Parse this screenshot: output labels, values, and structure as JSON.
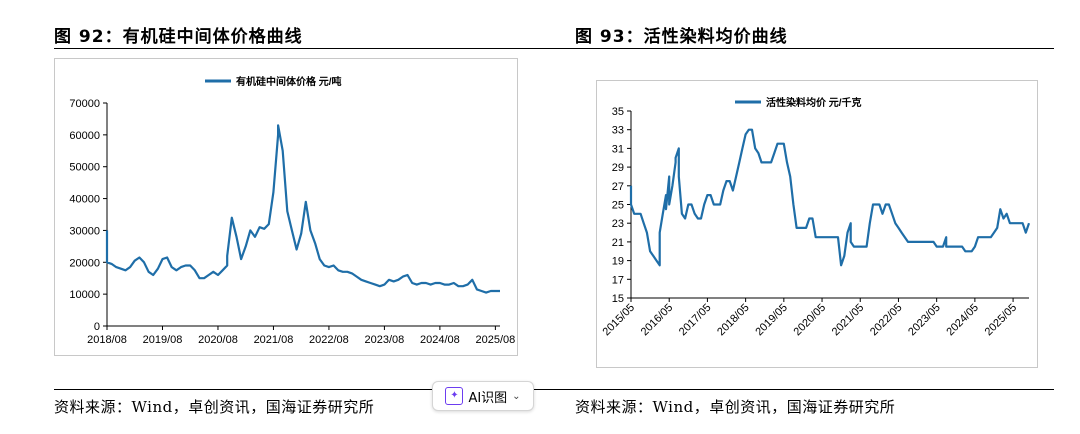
{
  "figures": {
    "left_title": "图 92：有机硅中间体价格曲线",
    "right_title": "图 93：活性染料均价曲线"
  },
  "footer": {
    "left_source": "资料来源：Wind，卓创资讯，国海证券研究所",
    "right_source": "资料来源：Wind，卓创资讯，国海证券研究所",
    "ai_button_label": "AI识图",
    "ai_button_icon": "sparkle-icon",
    "ai_button_chevron": "chevron-down-icon"
  },
  "chart_data": [
    {
      "type": "line",
      "legend": "有机硅中间体价格  元/吨",
      "color": "#1f6ea8",
      "ylim": [
        0,
        70000
      ],
      "yticks": [
        0,
        10000,
        20000,
        30000,
        40000,
        50000,
        60000,
        70000
      ],
      "xlim": [
        "2018/08",
        "2025/09"
      ],
      "xticks": [
        "2018/08",
        "2019/08",
        "2020/08",
        "2021/08",
        "2022/08",
        "2023/08",
        "2024/08",
        "2025/08"
      ],
      "series": [
        {
          "x": "2018/08",
          "y": 30000
        },
        {
          "x": "2018/08",
          "y": 20000
        },
        {
          "x": "2018/09",
          "y": 19500
        },
        {
          "x": "2018/10",
          "y": 18500
        },
        {
          "x": "2018/11",
          "y": 18000
        },
        {
          "x": "2018/12",
          "y": 17500
        },
        {
          "x": "2019/01",
          "y": 18500
        },
        {
          "x": "2019/02",
          "y": 20500
        },
        {
          "x": "2019/03",
          "y": 21500
        },
        {
          "x": "2019/04",
          "y": 20000
        },
        {
          "x": "2019/05",
          "y": 17000
        },
        {
          "x": "2019/06",
          "y": 16000
        },
        {
          "x": "2019/07",
          "y": 18000
        },
        {
          "x": "2019/08",
          "y": 21000
        },
        {
          "x": "2019/09",
          "y": 21500
        },
        {
          "x": "2019/10",
          "y": 18500
        },
        {
          "x": "2019/11",
          "y": 17500
        },
        {
          "x": "2019/12",
          "y": 18500
        },
        {
          "x": "2020/01",
          "y": 19000
        },
        {
          "x": "2020/02",
          "y": 19000
        },
        {
          "x": "2020/03",
          "y": 17500
        },
        {
          "x": "2020/04",
          "y": 15000
        },
        {
          "x": "2020/05",
          "y": 15000
        },
        {
          "x": "2020/06",
          "y": 16000
        },
        {
          "x": "2020/07",
          "y": 17000
        },
        {
          "x": "2020/08",
          "y": 16000
        },
        {
          "x": "2020/09",
          "y": 17500
        },
        {
          "x": "2020/10",
          "y": 19000
        },
        {
          "x": "2020/10",
          "y": 22000
        },
        {
          "x": "2020/11",
          "y": 34000
        },
        {
          "x": "2020/12",
          "y": 28000
        },
        {
          "x": "2021/01",
          "y": 21000
        },
        {
          "x": "2021/02",
          "y": 25000
        },
        {
          "x": "2021/03",
          "y": 30000
        },
        {
          "x": "2021/04",
          "y": 28000
        },
        {
          "x": "2021/05",
          "y": 31000
        },
        {
          "x": "2021/06",
          "y": 30500
        },
        {
          "x": "2021/07",
          "y": 32000
        },
        {
          "x": "2021/08",
          "y": 42000
        },
        {
          "x": "2021/09",
          "y": 60000
        },
        {
          "x": "2021/09",
          "y": 63000
        },
        {
          "x": "2021/10",
          "y": 55000
        },
        {
          "x": "2021/11",
          "y": 36000
        },
        {
          "x": "2021/12",
          "y": 30000
        },
        {
          "x": "2022/01",
          "y": 24000
        },
        {
          "x": "2022/02",
          "y": 29000
        },
        {
          "x": "2022/03",
          "y": 39000
        },
        {
          "x": "2022/04",
          "y": 30000
        },
        {
          "x": "2022/05",
          "y": 26000
        },
        {
          "x": "2022/06",
          "y": 21000
        },
        {
          "x": "2022/07",
          "y": 19000
        },
        {
          "x": "2022/08",
          "y": 18500
        },
        {
          "x": "2022/09",
          "y": 19000
        },
        {
          "x": "2022/10",
          "y": 17500
        },
        {
          "x": "2022/11",
          "y": 17000
        },
        {
          "x": "2022/12",
          "y": 17000
        },
        {
          "x": "2023/01",
          "y": 16500
        },
        {
          "x": "2023/02",
          "y": 15500
        },
        {
          "x": "2023/03",
          "y": 14500
        },
        {
          "x": "2023/04",
          "y": 14000
        },
        {
          "x": "2023/05",
          "y": 13500
        },
        {
          "x": "2023/06",
          "y": 13000
        },
        {
          "x": "2023/07",
          "y": 12500
        },
        {
          "x": "2023/08",
          "y": 13000
        },
        {
          "x": "2023/09",
          "y": 14500
        },
        {
          "x": "2023/10",
          "y": 14000
        },
        {
          "x": "2023/11",
          "y": 14500
        },
        {
          "x": "2023/12",
          "y": 15500
        },
        {
          "x": "2024/01",
          "y": 16000
        },
        {
          "x": "2024/02",
          "y": 13500
        },
        {
          "x": "2024/03",
          "y": 13000
        },
        {
          "x": "2024/04",
          "y": 13500
        },
        {
          "x": "2024/05",
          "y": 13500
        },
        {
          "x": "2024/06",
          "y": 13000
        },
        {
          "x": "2024/07",
          "y": 13500
        },
        {
          "x": "2024/08",
          "y": 13500
        },
        {
          "x": "2024/09",
          "y": 13000
        },
        {
          "x": "2024/10",
          "y": 13000
        },
        {
          "x": "2024/11",
          "y": 13500
        },
        {
          "x": "2024/12",
          "y": 12500
        },
        {
          "x": "2025/01",
          "y": 12500
        },
        {
          "x": "2025/02",
          "y": 13000
        },
        {
          "x": "2025/03",
          "y": 14500
        },
        {
          "x": "2025/04",
          "y": 11500
        },
        {
          "x": "2025/05",
          "y": 11000
        },
        {
          "x": "2025/06",
          "y": 10500
        },
        {
          "x": "2025/07",
          "y": 11000
        },
        {
          "x": "2025/08",
          "y": 11000
        },
        {
          "x": "2025/09",
          "y": 11000
        }
      ]
    },
    {
      "type": "line",
      "legend": "活性染料均价  元/千克",
      "color": "#1f6ea8",
      "ylim": [
        15,
        35
      ],
      "yticks": [
        15,
        17,
        19,
        21,
        23,
        25,
        27,
        29,
        31,
        33,
        35
      ],
      "xlim": [
        "2015/05",
        "2025/10"
      ],
      "xticks": [
        "2015/05",
        "2016/05",
        "2017/05",
        "2018/05",
        "2019/05",
        "2020/05",
        "2021/05",
        "2022/05",
        "2023/05",
        "2024/05",
        "2025/05"
      ],
      "series": [
        {
          "x": "2015/05",
          "y": 27
        },
        {
          "x": "2015/05",
          "y": 25
        },
        {
          "x": "2015/06",
          "y": 24
        },
        {
          "x": "2015/07",
          "y": 24
        },
        {
          "x": "2015/08",
          "y": 24
        },
        {
          "x": "2015/09",
          "y": 23
        },
        {
          "x": "2015/10",
          "y": 22
        },
        {
          "x": "2015/11",
          "y": 20
        },
        {
          "x": "2015/12",
          "y": 19.5
        },
        {
          "x": "2016/01",
          "y": 19
        },
        {
          "x": "2016/02",
          "y": 18.5
        },
        {
          "x": "2016/02",
          "y": 22
        },
        {
          "x": "2016/03",
          "y": 24
        },
        {
          "x": "2016/04",
          "y": 26
        },
        {
          "x": "2016/04",
          "y": 24.5
        },
        {
          "x": "2016/05",
          "y": 28
        },
        {
          "x": "2016/05",
          "y": 25
        },
        {
          "x": "2016/06",
          "y": 27
        },
        {
          "x": "2016/07",
          "y": 29.5
        },
        {
          "x": "2016/07",
          "y": 30
        },
        {
          "x": "2016/08",
          "y": 31
        },
        {
          "x": "2016/08",
          "y": 28
        },
        {
          "x": "2016/09",
          "y": 24
        },
        {
          "x": "2016/10",
          "y": 23.5
        },
        {
          "x": "2016/11",
          "y": 25
        },
        {
          "x": "2016/12",
          "y": 25
        },
        {
          "x": "2017/01",
          "y": 24
        },
        {
          "x": "2017/02",
          "y": 23.5
        },
        {
          "x": "2017/03",
          "y": 23.5
        },
        {
          "x": "2017/04",
          "y": 25
        },
        {
          "x": "2017/05",
          "y": 26
        },
        {
          "x": "2017/06",
          "y": 26
        },
        {
          "x": "2017/07",
          "y": 25
        },
        {
          "x": "2017/08",
          "y": 25
        },
        {
          "x": "2017/09",
          "y": 25
        },
        {
          "x": "2017/10",
          "y": 26.5
        },
        {
          "x": "2017/11",
          "y": 27.5
        },
        {
          "x": "2017/12",
          "y": 27.5
        },
        {
          "x": "2018/01",
          "y": 26.5
        },
        {
          "x": "2018/02",
          "y": 28
        },
        {
          "x": "2018/03",
          "y": 29.5
        },
        {
          "x": "2018/04",
          "y": 31
        },
        {
          "x": "2018/05",
          "y": 32.5
        },
        {
          "x": "2018/06",
          "y": 33
        },
        {
          "x": "2018/07",
          "y": 33
        },
        {
          "x": "2018/08",
          "y": 31
        },
        {
          "x": "2018/09",
          "y": 30.5
        },
        {
          "x": "2018/10",
          "y": 29.5
        },
        {
          "x": "2018/11",
          "y": 29.5
        },
        {
          "x": "2018/12",
          "y": 29.5
        },
        {
          "x": "2019/01",
          "y": 29.5
        },
        {
          "x": "2019/02",
          "y": 30.5
        },
        {
          "x": "2019/03",
          "y": 31.5
        },
        {
          "x": "2019/04",
          "y": 31.5
        },
        {
          "x": "2019/05",
          "y": 31.5
        },
        {
          "x": "2019/06",
          "y": 29.5
        },
        {
          "x": "2019/07",
          "y": 28
        },
        {
          "x": "2019/08",
          "y": 25
        },
        {
          "x": "2019/09",
          "y": 22.5
        },
        {
          "x": "2019/10",
          "y": 22.5
        },
        {
          "x": "2019/11",
          "y": 22.5
        },
        {
          "x": "2019/12",
          "y": 22.5
        },
        {
          "x": "2020/01",
          "y": 23.5
        },
        {
          "x": "2020/02",
          "y": 23.5
        },
        {
          "x": "2020/03",
          "y": 21.5
        },
        {
          "x": "2020/04",
          "y": 21.5
        },
        {
          "x": "2020/05",
          "y": 21.5
        },
        {
          "x": "2020/06",
          "y": 21.5
        },
        {
          "x": "2020/07",
          "y": 21.5
        },
        {
          "x": "2020/08",
          "y": 21.5
        },
        {
          "x": "2020/09",
          "y": 21.5
        },
        {
          "x": "2020/10",
          "y": 21.5
        },
        {
          "x": "2020/11",
          "y": 18.5
        },
        {
          "x": "2020/12",
          "y": 19.5
        },
        {
          "x": "2021/01",
          "y": 22
        },
        {
          "x": "2021/02",
          "y": 23
        },
        {
          "x": "2021/02",
          "y": 21
        },
        {
          "x": "2021/03",
          "y": 20.5
        },
        {
          "x": "2021/04",
          "y": 20.5
        },
        {
          "x": "2021/05",
          "y": 20.5
        },
        {
          "x": "2021/06",
          "y": 20.5
        },
        {
          "x": "2021/07",
          "y": 20.5
        },
        {
          "x": "2021/08",
          "y": 23
        },
        {
          "x": "2021/09",
          "y": 25
        },
        {
          "x": "2021/10",
          "y": 25
        },
        {
          "x": "2021/11",
          "y": 25
        },
        {
          "x": "2021/12",
          "y": 24
        },
        {
          "x": "2022/01",
          "y": 25
        },
        {
          "x": "2022/02",
          "y": 25
        },
        {
          "x": "2022/03",
          "y": 24
        },
        {
          "x": "2022/04",
          "y": 23
        },
        {
          "x": "2022/05",
          "y": 22.5
        },
        {
          "x": "2022/06",
          "y": 22
        },
        {
          "x": "2022/07",
          "y": 21.5
        },
        {
          "x": "2022/08",
          "y": 21
        },
        {
          "x": "2022/10",
          "y": 21
        },
        {
          "x": "2022/12",
          "y": 21
        },
        {
          "x": "2023/02",
          "y": 21
        },
        {
          "x": "2023/04",
          "y": 21
        },
        {
          "x": "2023/05",
          "y": 20.5
        },
        {
          "x": "2023/07",
          "y": 20.5
        },
        {
          "x": "2023/08",
          "y": 21.5
        },
        {
          "x": "2023/08",
          "y": 20.5
        },
        {
          "x": "2023/10",
          "y": 20.5
        },
        {
          "x": "2023/12",
          "y": 20.5
        },
        {
          "x": "2024/01",
          "y": 20.5
        },
        {
          "x": "2024/02",
          "y": 20
        },
        {
          "x": "2024/04",
          "y": 20
        },
        {
          "x": "2024/05",
          "y": 20.5
        },
        {
          "x": "2024/06",
          "y": 21.5
        },
        {
          "x": "2024/08",
          "y": 21.5
        },
        {
          "x": "2024/10",
          "y": 21.5
        },
        {
          "x": "2024/11",
          "y": 22
        },
        {
          "x": "2024/12",
          "y": 22.5
        },
        {
          "x": "2025/01",
          "y": 24.5
        },
        {
          "x": "2025/02",
          "y": 23.5
        },
        {
          "x": "2025/03",
          "y": 24
        },
        {
          "x": "2025/04",
          "y": 23
        },
        {
          "x": "2025/06",
          "y": 23
        },
        {
          "x": "2025/08",
          "y": 23
        },
        {
          "x": "2025/09",
          "y": 22
        },
        {
          "x": "2025/10",
          "y": 23
        }
      ]
    }
  ]
}
